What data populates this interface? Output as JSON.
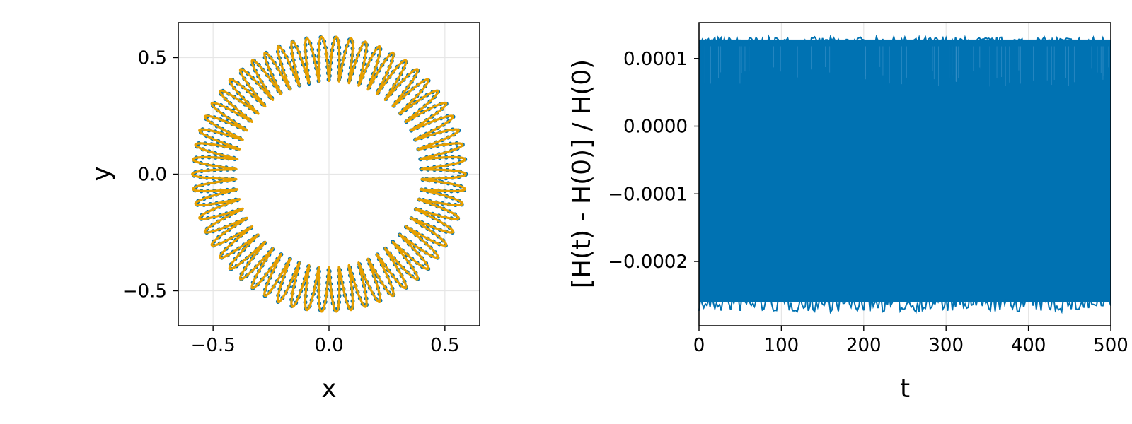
{
  "chart_data": [
    {
      "type": "line",
      "panel": "orbit",
      "title": "",
      "xlabel": "x",
      "ylabel": "y",
      "xlim": [
        -0.65,
        0.65
      ],
      "ylim": [
        -0.65,
        0.65
      ],
      "xticks": [
        -0.5,
        0.0,
        0.5
      ],
      "yticks": [
        -0.5,
        0.0,
        0.5
      ],
      "xtick_labels": [
        "−0.5",
        "0.0",
        "0.5"
      ],
      "ytick_labels": [
        "−0.5",
        "0.0",
        "0.5"
      ],
      "grid": true,
      "aspect": "equal",
      "series": [
        {
          "style": "scatter",
          "color": "#0072b2",
          "description_values": {
            "inner_radius": 0.4,
            "outer_radius": 0.59,
            "loops": 58
          }
        },
        {
          "style": "line",
          "color": "#e69f00",
          "description_values": {
            "inner_radius": 0.4,
            "outer_radius": 0.59,
            "loops": 58
          }
        }
      ]
    },
    {
      "type": "line",
      "panel": "energy",
      "title": "",
      "xlabel": "t",
      "ylabel": "[H(t) - H(0)] / H(0)",
      "xlim": [
        0,
        500
      ],
      "ylim": [
        -0.000295,
        0.000153
      ],
      "xticks": [
        0,
        100,
        200,
        300,
        400,
        500
      ],
      "yticks": [
        0.0001,
        0.0,
        -0.0001,
        -0.0002
      ],
      "xtick_labels": [
        "0",
        "100",
        "200",
        "300",
        "400",
        "500"
      ],
      "ytick_labels": [
        "0.0001",
        "0.0000",
        "−0.0001",
        "−0.0002"
      ],
      "grid": true,
      "series": [
        {
          "color": "#0072b2",
          "envelope": {
            "max": 0.000128,
            "min": -0.00026
          },
          "peak_extremes": {
            "max": 0.000132,
            "min": -0.000275
          }
        }
      ]
    }
  ]
}
